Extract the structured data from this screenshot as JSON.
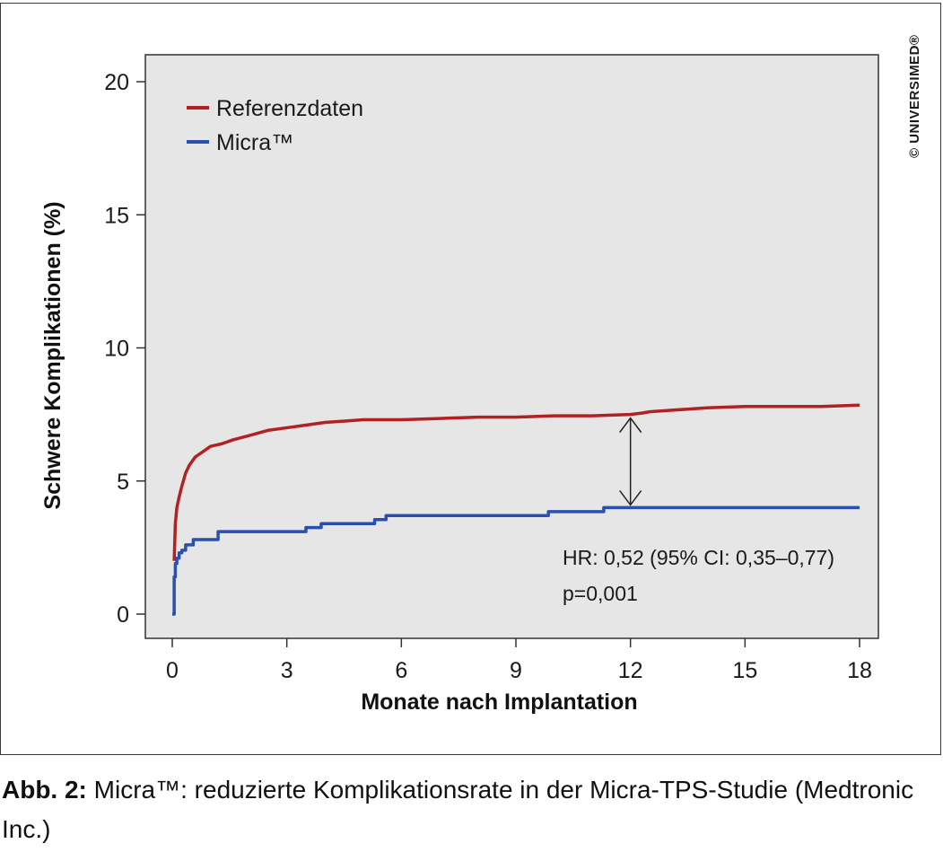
{
  "chart_data": {
    "type": "line",
    "ylabel": "Schwere Komplikationen (%)",
    "xlabel": "Monate nach Implantation",
    "xlim": [
      0,
      18
    ],
    "ylim": [
      0,
      20
    ],
    "x_ticks": [
      0,
      3,
      6,
      9,
      12,
      15,
      18
    ],
    "y_ticks": [
      0,
      5,
      10,
      15,
      20
    ],
    "legend_position": "top-left",
    "grid": false,
    "series": [
      {
        "name": "Referenzdaten",
        "color": "#b22222",
        "step": false,
        "x": [
          0.05,
          0.08,
          0.12,
          0.18,
          0.25,
          0.35,
          0.45,
          0.6,
          0.8,
          1.0,
          1.3,
          1.6,
          2.0,
          2.5,
          3.0,
          3.5,
          4.0,
          5.0,
          6.0,
          7.0,
          8.0,
          9.0,
          10.0,
          11.0,
          12.0,
          12.3,
          12.5,
          13.0,
          13.5,
          14.0,
          15.0,
          16.0,
          17.0,
          18.0
        ],
        "values": [
          2.0,
          3.4,
          4.0,
          4.4,
          4.8,
          5.3,
          5.6,
          5.9,
          6.1,
          6.3,
          6.4,
          6.55,
          6.7,
          6.9,
          7.0,
          7.1,
          7.2,
          7.3,
          7.3,
          7.35,
          7.4,
          7.4,
          7.45,
          7.45,
          7.5,
          7.55,
          7.6,
          7.65,
          7.7,
          7.75,
          7.8,
          7.8,
          7.8,
          7.85
        ]
      },
      {
        "name": "Micra™",
        "color": "#2a4fae",
        "step": true,
        "x": [
          0.0,
          0.05,
          0.08,
          0.12,
          0.18,
          0.25,
          0.35,
          0.55,
          1.2,
          3.5,
          3.9,
          5.3,
          5.6,
          9.85,
          11.3,
          18.0
        ],
        "values": [
          0.0,
          1.4,
          1.9,
          2.1,
          2.3,
          2.4,
          2.6,
          2.8,
          3.1,
          3.25,
          3.4,
          3.55,
          3.7,
          3.85,
          4.0,
          4.0
        ]
      }
    ],
    "annotations": {
      "hr_text": "HR: 0,52 (95% CI: 0,35–0,77)",
      "p_text": "p=0,001",
      "arrow_x": 12,
      "arrow_y_top": 7.5,
      "arrow_y_bottom": 4.0
    }
  },
  "copyright": "© UNIVERSIMED®",
  "caption": {
    "label": "Abb. 2:",
    "text": " Micra™: reduzierte Komplikationsrate in der Micra-TPS-Studie (Medtronic Inc.)"
  },
  "colors": {
    "plot_background": "#e6e6e6",
    "axis": "#333333"
  }
}
